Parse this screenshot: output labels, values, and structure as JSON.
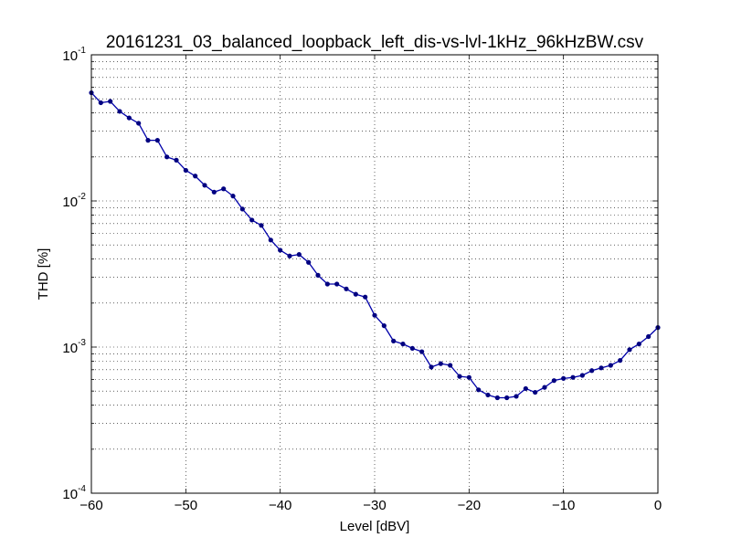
{
  "chart_data": {
    "type": "line",
    "title": "20161231_03_balanced_loopback_left_dis-vs-lvl-1kHz_96kHzBW.csv",
    "xlabel": "Level [dBV]",
    "ylabel": "THD [%]",
    "xlim": [
      -60,
      0
    ],
    "ylim": [
      0.0001,
      0.1
    ],
    "yscale": "log",
    "grid": true,
    "line_color": "#0000aa",
    "marker_color": "#000080",
    "x_ticks": [
      -60,
      -50,
      -40,
      -30,
      -20,
      -10,
      0
    ],
    "x_tick_labels": [
      "−60",
      "−50",
      "−40",
      "−30",
      "−20",
      "−10",
      "0"
    ],
    "y_ticks": [
      {
        "value": 0.1,
        "base": "10",
        "exp": "-1"
      },
      {
        "value": 0.01,
        "base": "10",
        "exp": "-2"
      },
      {
        "value": 0.001,
        "base": "10",
        "exp": "-3"
      },
      {
        "value": 0.0001,
        "base": "10",
        "exp": "-4"
      }
    ],
    "series": [
      {
        "x": [
          -60,
          -59,
          -58,
          -57,
          -56,
          -55,
          -54,
          -53,
          -52,
          -51,
          -50,
          -49,
          -48,
          -47,
          -46,
          -45,
          -44,
          -43,
          -42,
          -41,
          -40,
          -39,
          -38,
          -37,
          -36,
          -35,
          -34,
          -33,
          -32,
          -31,
          -30,
          -29,
          -28,
          -27,
          -26,
          -25,
          -24,
          -23,
          -22,
          -21,
          -20,
          -19,
          -18,
          -17,
          -16,
          -15,
          -14,
          -13,
          -12,
          -11,
          -10,
          -9,
          -8,
          -7,
          -6,
          -5,
          -4,
          -3,
          -2,
          -1,
          0
        ],
        "values": [
          0.055,
          0.047,
          0.048,
          0.041,
          0.037,
          0.034,
          0.026,
          0.026,
          0.02,
          0.019,
          0.0162,
          0.0148,
          0.0128,
          0.0115,
          0.0121,
          0.0108,
          0.0088,
          0.0074,
          0.0068,
          0.0054,
          0.0046,
          0.0042,
          0.0043,
          0.0038,
          0.0031,
          0.0027,
          0.0027,
          0.0025,
          0.0023,
          0.0022,
          0.00165,
          0.0014,
          0.0011,
          0.00105,
          0.00098,
          0.00093,
          0.00073,
          0.00077,
          0.00075,
          0.00063,
          0.00062,
          0.00051,
          0.00047,
          0.00045,
          0.00045,
          0.00046,
          0.00052,
          0.00049,
          0.00053,
          0.00059,
          0.00061,
          0.00062,
          0.00064,
          0.00069,
          0.00072,
          0.00075,
          0.00081,
          0.00096,
          0.00105,
          0.00118,
          0.00136
        ]
      }
    ]
  }
}
